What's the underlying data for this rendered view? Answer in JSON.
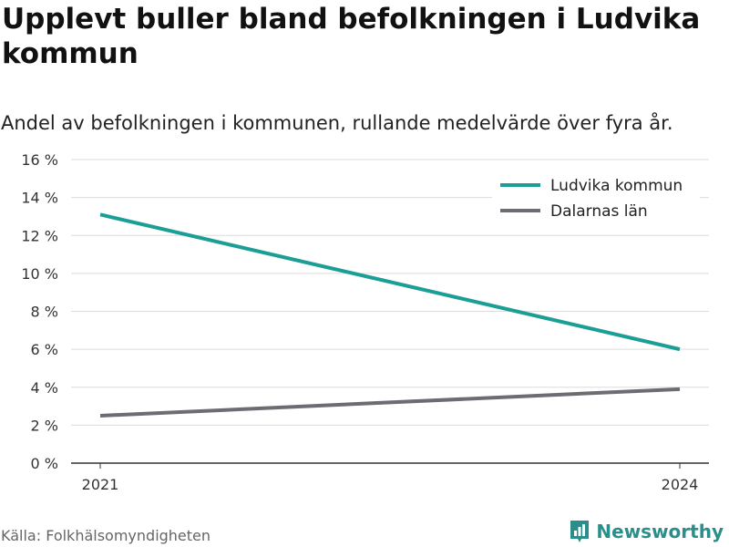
{
  "title": "Upplevt buller bland befolkningen i Ludvika kommun",
  "subtitle": "Andel av befolkningen i kommunen, rullande medelvärde över fyra år.",
  "source": "Källa: Folkhälsomyndigheten",
  "brand": "Newsworthy",
  "chart_data": {
    "type": "line",
    "x": [
      "2021",
      "2024"
    ],
    "ylim": [
      0,
      16
    ],
    "yticks": [
      0,
      2,
      4,
      6,
      8,
      10,
      12,
      14,
      16
    ],
    "ytick_labels": [
      "0 %",
      "2 %",
      "4 %",
      "6 %",
      "8 %",
      "10 %",
      "12 %",
      "14 %",
      "16 %"
    ],
    "grid": true,
    "legend_position": "top-right",
    "series": [
      {
        "name": "Ludvika kommun",
        "color": "#1a9e96",
        "values": [
          13.1,
          6.0
        ]
      },
      {
        "name": "Dalarnas län",
        "color": "#6e6c72",
        "values": [
          2.5,
          3.9
        ]
      }
    ]
  }
}
